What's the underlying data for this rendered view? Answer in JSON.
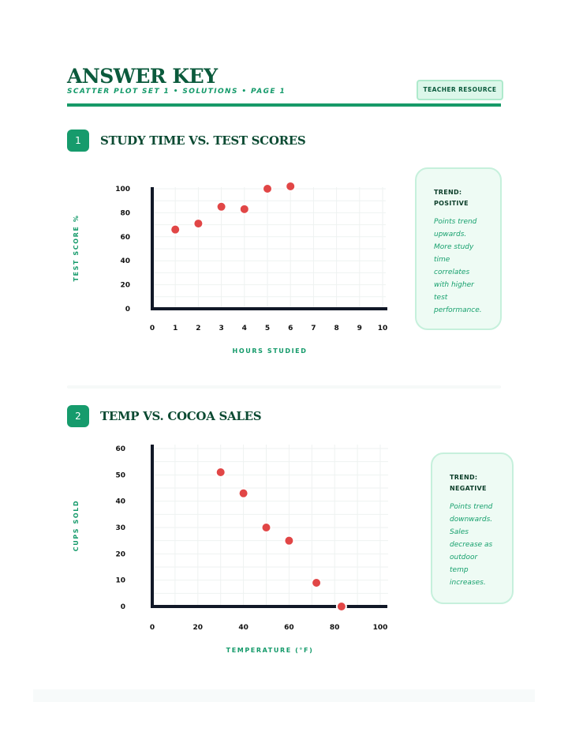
{
  "header": {
    "title": "ANSWER KEY",
    "subtitle": "SCATTER PLOT SET 1 • SOLUTIONS • PAGE 1",
    "badge": "TEACHER RESOURCE"
  },
  "colors": {
    "accent": "#179a68",
    "dark": "#0b5a3c",
    "point": "#e14646",
    "axis": "#111827",
    "note_bg": "#eefbf4"
  },
  "sections": [
    {
      "number": "1",
      "title": "STUDY TIME VS. TEST SCORES",
      "note": {
        "title_line1": "TREND:",
        "title_line2": "POSITIVE",
        "body_lines": [
          "Points trend",
          "upwards.",
          "More study",
          "time",
          "correlates",
          "with higher",
          "test",
          "performance."
        ]
      }
    },
    {
      "number": "2",
      "title": "TEMP VS. COCOA SALES",
      "note": {
        "title_line1": "TREND:",
        "title_line2": "NEGATIVE",
        "body_lines": [
          "Points trend",
          "downwards.",
          "Sales",
          "decrease as",
          "outdoor",
          "temp",
          "increases."
        ]
      }
    }
  ],
  "chart_data": [
    {
      "type": "scatter",
      "xlabel": "HOURS STUDIED",
      "ylabel": "TEST SCORE %",
      "xlim": [
        0,
        10
      ],
      "ylim": [
        0,
        100
      ],
      "xticks": [
        0,
        1,
        2,
        3,
        4,
        5,
        6,
        7,
        8,
        9,
        10
      ],
      "yticks": [
        0,
        20,
        40,
        60,
        80,
        100
      ],
      "grid": true,
      "x": [
        1,
        2,
        3,
        4,
        5,
        6
      ],
      "y": [
        66,
        71,
        85,
        83,
        100,
        102
      ]
    },
    {
      "type": "scatter",
      "xlabel": "TEMPERATURE (°F)",
      "ylabel": "CUPS SOLD",
      "xlim": [
        0,
        100
      ],
      "ylim": [
        0,
        60
      ],
      "xticks": [
        0,
        20,
        40,
        60,
        80,
        100
      ],
      "yticks": [
        0,
        10,
        20,
        30,
        40,
        50,
        60
      ],
      "grid": true,
      "x": [
        30,
        40,
        50,
        60,
        72,
        83
      ],
      "y": [
        51,
        43,
        30,
        25,
        9,
        0
      ]
    }
  ]
}
